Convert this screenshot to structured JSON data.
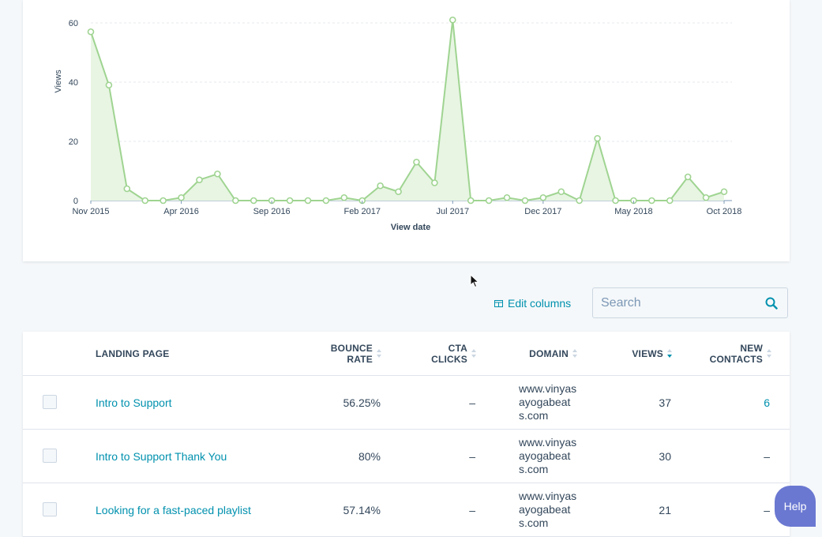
{
  "chart_data": {
    "type": "area",
    "xlabel": "View date",
    "ylabel": "Views",
    "yticks": [
      0,
      20,
      40,
      60
    ],
    "ylim": [
      0,
      60
    ],
    "xtick_labels": [
      "Nov 2015",
      "Apr 2016",
      "Sep 2016",
      "Feb 2017",
      "Jul 2017",
      "Dec 2017",
      "May 2018",
      "Oct 2018"
    ],
    "xtick_indices": [
      0,
      5,
      10,
      15,
      20,
      25,
      30,
      35
    ],
    "grid": true,
    "series": [
      {
        "values": [
          57,
          39,
          4,
          0,
          0,
          1,
          7,
          9,
          0,
          0,
          0,
          0,
          0,
          0,
          1,
          0,
          5,
          3,
          13,
          6,
          61,
          0,
          0,
          1,
          0,
          1,
          3,
          0,
          21,
          0,
          0,
          0,
          0,
          8,
          1,
          3
        ],
        "line_color": "#9fd491",
        "fill_color": "#e8f5e3"
      }
    ]
  },
  "toolbar": {
    "edit_columns_label": "Edit columns",
    "search_placeholder": "Search",
    "search_icon": "magnifier-icon"
  },
  "table": {
    "columns": [
      {
        "key": "landing_page",
        "label": "LANDING PAGE"
      },
      {
        "key": "bounce_rate",
        "label_line1": "BOUNCE",
        "label_line2": "RATE"
      },
      {
        "key": "cta_clicks",
        "label_line1": "CTA",
        "label_line2": "CLICKS"
      },
      {
        "key": "domain",
        "label": "DOMAIN"
      },
      {
        "key": "views",
        "label": "VIEWS"
      },
      {
        "key": "new_contacts",
        "label_line1": "NEW",
        "label_line2": "CONTACTS"
      }
    ],
    "rows": [
      {
        "landing_page": "Intro to Support",
        "bounce_rate": "56.25%",
        "cta_clicks": "–",
        "domain": "www.vinyasayogabeats.com",
        "views": "37",
        "new_contacts": "6"
      },
      {
        "landing_page": "Intro to Support Thank You",
        "bounce_rate": "80%",
        "cta_clicks": "–",
        "domain": "www.vinyasayogabeats.com",
        "views": "30",
        "new_contacts": "–"
      },
      {
        "landing_page": "Looking for a fast-paced playlist",
        "bounce_rate": "57.14%",
        "cta_clicks": "–",
        "domain": "www.vinyasayogabeats.com",
        "views": "21",
        "new_contacts": "–"
      }
    ]
  },
  "help": {
    "label": "Help"
  },
  "colors": {
    "accent": "#0091ae",
    "line": "#9fd491",
    "fill": "#e8f5e3",
    "text": "#33475b",
    "help": "#6a78d1"
  }
}
